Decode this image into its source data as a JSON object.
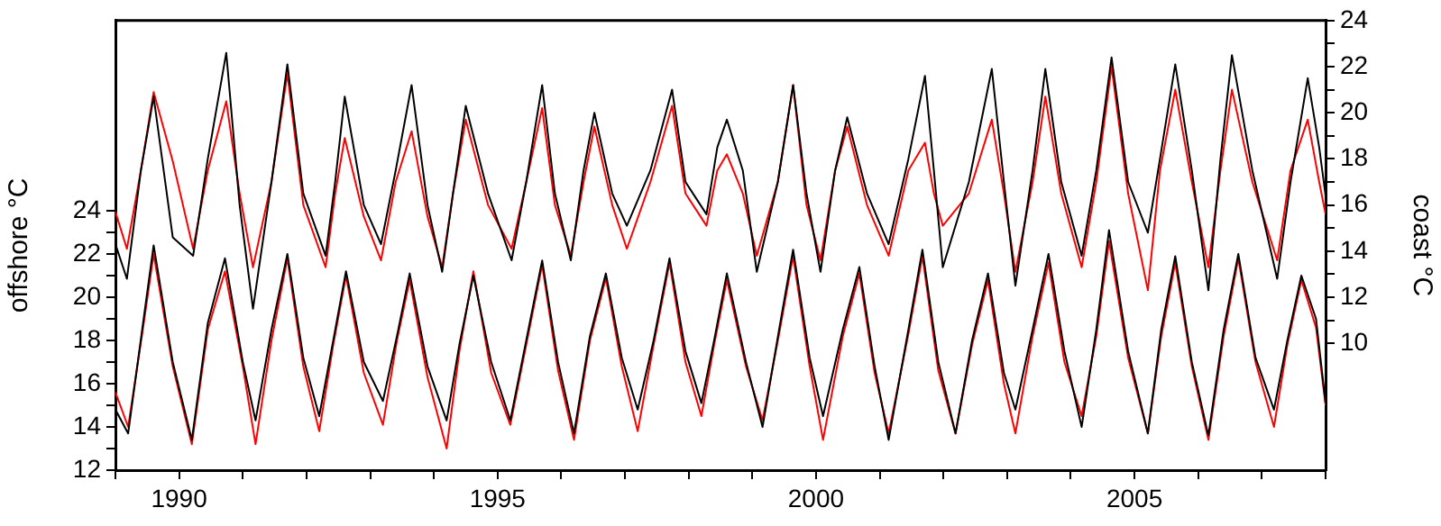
{
  "chart_data": {
    "type": "line",
    "ylabel": "offshore °C",
    "y2label": "coast °C",
    "xlim": [
      1989,
      2008
    ],
    "xticks": [
      {
        "value": 1989,
        "label": null
      },
      1990,
      {
        "value": 1991,
        "label": null
      },
      {
        "value": 1992,
        "label": null
      },
      {
        "value": 1993,
        "label": null
      },
      {
        "value": 1994,
        "label": null
      },
      1995,
      {
        "value": 1996,
        "label": null
      },
      {
        "value": 1997,
        "label": null
      },
      {
        "value": 1998,
        "label": null
      },
      {
        "value": 1999,
        "label": null
      },
      2000,
      {
        "value": 2001,
        "label": null
      },
      {
        "value": 2002,
        "label": null
      },
      {
        "value": 2003,
        "label": null
      },
      {
        "value": 2004,
        "label": null
      },
      2005,
      {
        "value": 2006,
        "label": null
      },
      {
        "value": 2007,
        "label": null
      },
      {
        "value": 2008,
        "label": null
      }
    ],
    "ylim": [
      12,
      32.8
    ],
    "yticks": [
      12,
      {
        "value": 13,
        "label": null
      },
      14,
      {
        "value": 15,
        "label": null
      },
      16,
      {
        "value": 17,
        "label": null
      },
      18,
      {
        "value": 19,
        "label": null
      },
      20,
      {
        "value": 21,
        "label": null
      },
      22,
      {
        "value": 23,
        "label": null
      },
      24
    ],
    "y2lim": [
      4.5,
      24
    ],
    "y2ticks": [
      10,
      {
        "value": 11,
        "label": null
      },
      12,
      {
        "value": 13,
        "label": null
      },
      14,
      {
        "value": 15,
        "label": null
      },
      16,
      {
        "value": 17,
        "label": null
      },
      18,
      {
        "value": 19,
        "label": null
      },
      20,
      {
        "value": 21,
        "label": null
      },
      22,
      {
        "value": 23,
        "label": null
      },
      24
    ],
    "grid": false,
    "legend": false,
    "marker": "none",
    "line_style": "solid",
    "series": [
      {
        "color": "#000000",
        "axis": "y2",
        "x": [
          1989.0,
          1989.18,
          1989.4,
          1989.6,
          1989.9,
          1990.22,
          1990.45,
          1990.74,
          1990.95,
          1991.16,
          1991.45,
          1991.7,
          1991.95,
          1992.3,
          1992.45,
          1992.6,
          1992.9,
          1993.17,
          1993.4,
          1993.65,
          1993.9,
          1994.13,
          1994.3,
          1994.5,
          1994.85,
          1995.22,
          1995.45,
          1995.7,
          1995.9,
          1996.15,
          1996.35,
          1996.52,
          1996.8,
          1997.03,
          1997.4,
          1997.74,
          1997.95,
          1998.28,
          1998.45,
          1998.6,
          1998.85,
          1999.07,
          1999.4,
          1999.64,
          1999.85,
          2000.07,
          2000.3,
          2000.49,
          2000.8,
          2001.14,
          2001.45,
          2001.71,
          2001.85,
          2001.99,
          2002.4,
          2002.76,
          2002.95,
          2003.13,
          2003.4,
          2003.6,
          2003.85,
          2004.17,
          2004.4,
          2004.64,
          2004.9,
          2005.21,
          2005.4,
          2005.64,
          2005.9,
          2006.16,
          2006.35,
          2006.53,
          2006.85,
          2007.24,
          2007.45,
          2007.72,
          2007.9,
          2008.0
        ],
        "values": [
          14.3,
          12.8,
          17.5,
          20.7,
          14.6,
          13.8,
          18.0,
          22.6,
          16.0,
          11.5,
          17.0,
          22.1,
          16.5,
          13.8,
          17.0,
          20.7,
          16.0,
          14.3,
          17.5,
          21.2,
          16.0,
          13.1,
          16.5,
          20.3,
          16.5,
          13.6,
          17.0,
          21.2,
          16.5,
          13.6,
          17.5,
          20.0,
          16.5,
          15.1,
          17.5,
          21.0,
          17.0,
          15.6,
          18.5,
          19.7,
          17.5,
          13.1,
          17.0,
          21.2,
          16.5,
          13.1,
          17.5,
          19.8,
          16.5,
          14.3,
          18.0,
          21.6,
          17.5,
          13.3,
          17.0,
          21.9,
          17.0,
          12.5,
          17.5,
          21.9,
          17.0,
          13.8,
          17.5,
          22.4,
          17.0,
          14.8,
          18.0,
          22.1,
          17.5,
          12.3,
          18.0,
          22.5,
          17.5,
          12.8,
          17.0,
          21.5,
          18.5,
          16.4
        ]
      },
      {
        "color": "#ff0000",
        "axis": "y2",
        "x": [
          1989.0,
          1989.18,
          1989.4,
          1989.6,
          1989.9,
          1990.22,
          1990.45,
          1990.74,
          1990.95,
          1991.16,
          1991.45,
          1991.7,
          1991.95,
          1992.3,
          1992.45,
          1992.6,
          1992.9,
          1993.17,
          1993.4,
          1993.65,
          1993.9,
          1994.13,
          1994.3,
          1994.5,
          1994.85,
          1995.22,
          1995.45,
          1995.7,
          1995.9,
          1996.15,
          1996.35,
          1996.52,
          1996.8,
          1997.03,
          1997.4,
          1997.74,
          1997.95,
          1998.28,
          1998.45,
          1998.6,
          1998.85,
          1999.07,
          1999.4,
          1999.64,
          1999.85,
          2000.07,
          2000.3,
          2000.49,
          2000.8,
          2001.14,
          2001.45,
          2001.71,
          2001.85,
          2001.99,
          2002.4,
          2002.76,
          2002.95,
          2003.13,
          2003.4,
          2003.6,
          2003.85,
          2004.17,
          2004.4,
          2004.64,
          2004.9,
          2005.21,
          2005.4,
          2005.64,
          2005.9,
          2006.16,
          2006.35,
          2006.53,
          2006.85,
          2007.24,
          2007.45,
          2007.72,
          2007.9,
          2008.0
        ],
        "values": [
          15.7,
          14.1,
          17.5,
          20.9,
          17.9,
          14.1,
          17.5,
          20.5,
          16.5,
          13.3,
          17.0,
          21.7,
          16.0,
          13.3,
          16.5,
          18.9,
          15.5,
          13.6,
          17.0,
          19.2,
          15.5,
          13.3,
          16.5,
          19.7,
          16.0,
          14.1,
          17.0,
          20.2,
          16.0,
          13.8,
          17.0,
          19.4,
          16.0,
          14.1,
          17.0,
          20.3,
          16.5,
          15.1,
          17.5,
          18.2,
          16.5,
          13.8,
          17.0,
          21.2,
          16.0,
          13.6,
          17.5,
          19.4,
          16.0,
          13.8,
          17.5,
          18.7,
          16.5,
          15.1,
          16.5,
          19.7,
          16.5,
          13.1,
          17.0,
          20.7,
          16.5,
          13.3,
          17.0,
          22.0,
          16.5,
          12.3,
          17.5,
          21.0,
          17.0,
          13.3,
          17.5,
          21.0,
          17.0,
          13.6,
          17.5,
          19.7,
          17.0,
          15.6
        ]
      },
      {
        "color": "#000000",
        "x": [
          1989.0,
          1989.2,
          1989.42,
          1989.6,
          1989.9,
          1990.2,
          1990.45,
          1990.72,
          1991.0,
          1991.2,
          1991.45,
          1991.7,
          1991.95,
          1992.2,
          1992.42,
          1992.62,
          1992.9,
          1993.2,
          1993.42,
          1993.62,
          1993.9,
          1994.2,
          1994.4,
          1994.62,
          1994.9,
          1995.2,
          1995.45,
          1995.7,
          1995.95,
          1996.2,
          1996.45,
          1996.7,
          1996.95,
          1997.2,
          1997.45,
          1997.7,
          1997.95,
          1998.2,
          1998.4,
          1998.6,
          1998.9,
          1999.16,
          1999.42,
          1999.64,
          1999.9,
          2000.11,
          2000.42,
          2000.68,
          2000.92,
          2001.14,
          2001.45,
          2001.67,
          2001.92,
          2002.19,
          2002.45,
          2002.7,
          2002.95,
          2003.13,
          2003.4,
          2003.65,
          2003.9,
          2004.17,
          2004.4,
          2004.6,
          2004.9,
          2005.21,
          2005.42,
          2005.64,
          2005.9,
          2006.16,
          2006.4,
          2006.63,
          2006.9,
          2007.19,
          2007.4,
          2007.62,
          2007.85,
          2008.0
        ],
        "values": [
          14.8,
          13.7,
          18.5,
          22.4,
          17.0,
          13.4,
          18.8,
          21.8,
          17.0,
          14.3,
          18.5,
          22.0,
          17.2,
          14.5,
          18.0,
          21.2,
          17.0,
          15.2,
          18.2,
          21.1,
          16.8,
          14.3,
          17.8,
          21.0,
          17.0,
          14.3,
          18.0,
          21.7,
          17.0,
          13.7,
          18.2,
          21.1,
          17.2,
          14.8,
          18.0,
          21.8,
          17.5,
          15.1,
          18.0,
          21.1,
          17.0,
          14.0,
          18.5,
          22.2,
          17.2,
          14.5,
          18.5,
          21.4,
          16.8,
          13.4,
          18.5,
          22.2,
          17.0,
          13.7,
          18.0,
          21.1,
          16.5,
          14.8,
          18.5,
          22.0,
          17.5,
          14.0,
          18.5,
          23.1,
          17.5,
          13.7,
          18.5,
          21.9,
          17.0,
          13.6,
          18.5,
          22.0,
          17.2,
          14.8,
          18.0,
          21.0,
          19.0,
          15.1
        ]
      },
      {
        "color": "#ff0000",
        "x": [
          1989.0,
          1989.2,
          1989.42,
          1989.6,
          1989.9,
          1990.2,
          1990.45,
          1990.72,
          1991.0,
          1991.2,
          1991.45,
          1991.7,
          1991.95,
          1992.2,
          1992.42,
          1992.62,
          1992.9,
          1993.2,
          1993.42,
          1993.62,
          1993.9,
          1994.2,
          1994.4,
          1994.62,
          1994.9,
          1995.2,
          1995.45,
          1995.7,
          1995.95,
          1996.2,
          1996.45,
          1996.7,
          1996.95,
          1997.2,
          1997.45,
          1997.7,
          1997.95,
          1998.2,
          1998.4,
          1998.6,
          1998.9,
          1999.16,
          1999.42,
          1999.64,
          1999.9,
          2000.11,
          2000.42,
          2000.68,
          2000.92,
          2001.14,
          2001.45,
          2001.67,
          2001.92,
          2002.19,
          2002.45,
          2002.7,
          2002.95,
          2003.13,
          2003.4,
          2003.65,
          2003.9,
          2004.17,
          2004.4,
          2004.6,
          2004.9,
          2005.21,
          2005.42,
          2005.64,
          2005.9,
          2006.16,
          2006.4,
          2006.63,
          2006.9,
          2007.19,
          2007.4,
          2007.62,
          2007.85,
          2008.0
        ],
        "values": [
          15.6,
          14.0,
          18.3,
          22.0,
          16.8,
          13.2,
          18.5,
          21.2,
          16.8,
          13.2,
          18.0,
          21.8,
          16.8,
          13.8,
          17.8,
          21.0,
          16.5,
          14.1,
          18.0,
          20.8,
          16.3,
          13.0,
          17.5,
          21.2,
          16.5,
          14.1,
          17.8,
          21.5,
          16.6,
          13.4,
          18.0,
          20.9,
          16.8,
          13.8,
          17.8,
          21.6,
          17.0,
          14.5,
          17.8,
          20.8,
          16.8,
          14.3,
          18.3,
          21.9,
          16.8,
          13.4,
          18.2,
          21.1,
          16.5,
          13.7,
          18.3,
          21.9,
          16.6,
          13.7,
          17.8,
          20.8,
          16.0,
          13.7,
          18.2,
          21.6,
          17.0,
          14.5,
          18.2,
          22.6,
          17.2,
          13.7,
          18.2,
          21.6,
          16.8,
          13.4,
          18.2,
          21.8,
          17.0,
          14.0,
          17.8,
          20.8,
          18.6,
          15.0
        ]
      }
    ]
  }
}
